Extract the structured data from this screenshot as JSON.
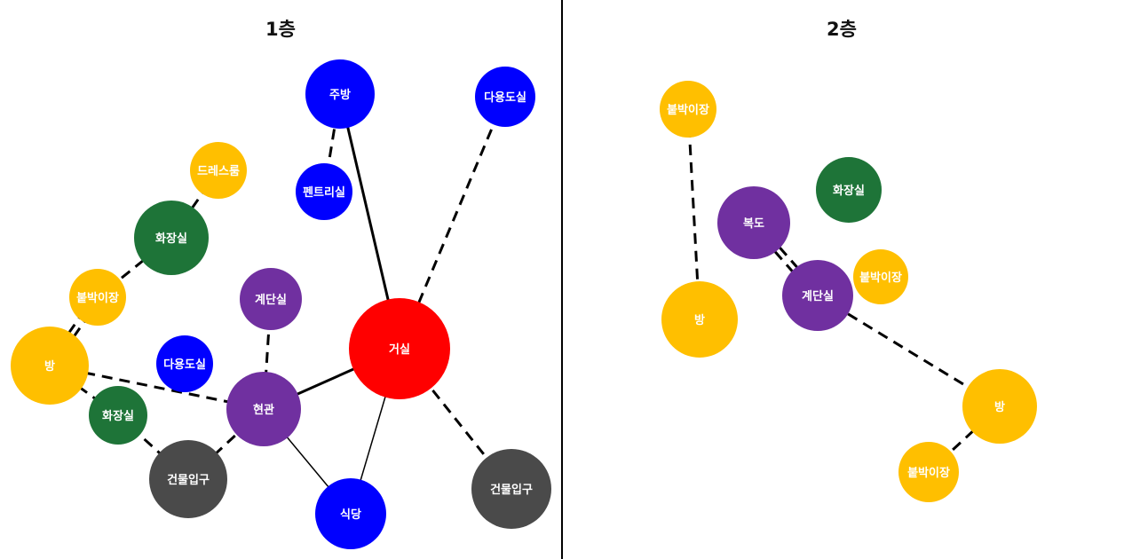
{
  "colors": {
    "yellow": "#FFBF00",
    "green": "#1E7438",
    "blue": "#0000FF",
    "purple": "#7030A0",
    "red": "#FF0000",
    "gray": "#4A4A4A",
    "line": "#000000"
  },
  "floors": [
    {
      "title": "1층",
      "nodes": [
        {
          "id": "kitchen",
          "label": "주방",
          "color": "blue"
        },
        {
          "id": "multi1",
          "label": "다용도실",
          "color": "blue"
        },
        {
          "id": "pantry",
          "label": "펜트리실",
          "color": "blue"
        },
        {
          "id": "dress",
          "label": "드레스룸",
          "color": "yellow"
        },
        {
          "id": "bath1",
          "label": "화장실",
          "color": "green"
        },
        {
          "id": "closet1",
          "label": "붙박이장",
          "color": "yellow"
        },
        {
          "id": "stair1",
          "label": "계단실",
          "color": "purple"
        },
        {
          "id": "living",
          "label": "거실",
          "color": "red"
        },
        {
          "id": "room1",
          "label": "방",
          "color": "yellow"
        },
        {
          "id": "multi2",
          "label": "다용도실",
          "color": "blue"
        },
        {
          "id": "entry",
          "label": "현관",
          "color": "purple"
        },
        {
          "id": "bath2",
          "label": "화장실",
          "color": "green"
        },
        {
          "id": "bldg1",
          "label": "건물입구",
          "color": "gray"
        },
        {
          "id": "dining",
          "label": "식당",
          "color": "blue"
        },
        {
          "id": "bldg2",
          "label": "건물입구",
          "color": "gray"
        }
      ],
      "edges": [
        {
          "from": "kitchen",
          "to": "living",
          "style": "solid-thick"
        },
        {
          "from": "kitchen",
          "to": "pantry",
          "style": "dashed"
        },
        {
          "from": "multi1",
          "to": "living",
          "style": "dashed"
        },
        {
          "from": "dress",
          "to": "bath1",
          "style": "dashed"
        },
        {
          "from": "bath1",
          "to": "closet1",
          "style": "dashed"
        },
        {
          "from": "closet1",
          "to": "room1",
          "style": "double-dashed"
        },
        {
          "from": "room1",
          "to": "entry",
          "style": "dashed"
        },
        {
          "from": "room1",
          "to": "bath2",
          "style": "dashed"
        },
        {
          "from": "bath2",
          "to": "bldg1",
          "style": "dashed"
        },
        {
          "from": "bldg1",
          "to": "entry",
          "style": "dashed"
        },
        {
          "from": "stair1",
          "to": "entry",
          "style": "dashed"
        },
        {
          "from": "entry",
          "to": "living",
          "style": "solid-thick"
        },
        {
          "from": "entry",
          "to": "dining",
          "style": "solid-thin"
        },
        {
          "from": "dining",
          "to": "living",
          "style": "solid-thin"
        },
        {
          "from": "living",
          "to": "bldg2",
          "style": "dashed"
        }
      ]
    },
    {
      "title": "2층",
      "nodes": [
        {
          "id": "closet2a",
          "label": "붙박이장",
          "color": "yellow"
        },
        {
          "id": "bath3",
          "label": "화장실",
          "color": "green"
        },
        {
          "id": "hall",
          "label": "복도",
          "color": "purple"
        },
        {
          "id": "closet2b",
          "label": "붙박이장",
          "color": "yellow"
        },
        {
          "id": "stair2",
          "label": "계단실",
          "color": "purple"
        },
        {
          "id": "room2a",
          "label": "방",
          "color": "yellow"
        },
        {
          "id": "room2b",
          "label": "방",
          "color": "yellow"
        },
        {
          "id": "closet2c",
          "label": "붙박이장",
          "color": "yellow"
        }
      ],
      "edges": [
        {
          "from": "closet2a",
          "to": "room2a",
          "style": "dashed"
        },
        {
          "from": "hall",
          "to": "stair2",
          "style": "double-dashed"
        },
        {
          "from": "stair2",
          "to": "room2b",
          "style": "dashed"
        },
        {
          "from": "room2b",
          "to": "closet2c",
          "style": "dashed"
        }
      ]
    }
  ]
}
